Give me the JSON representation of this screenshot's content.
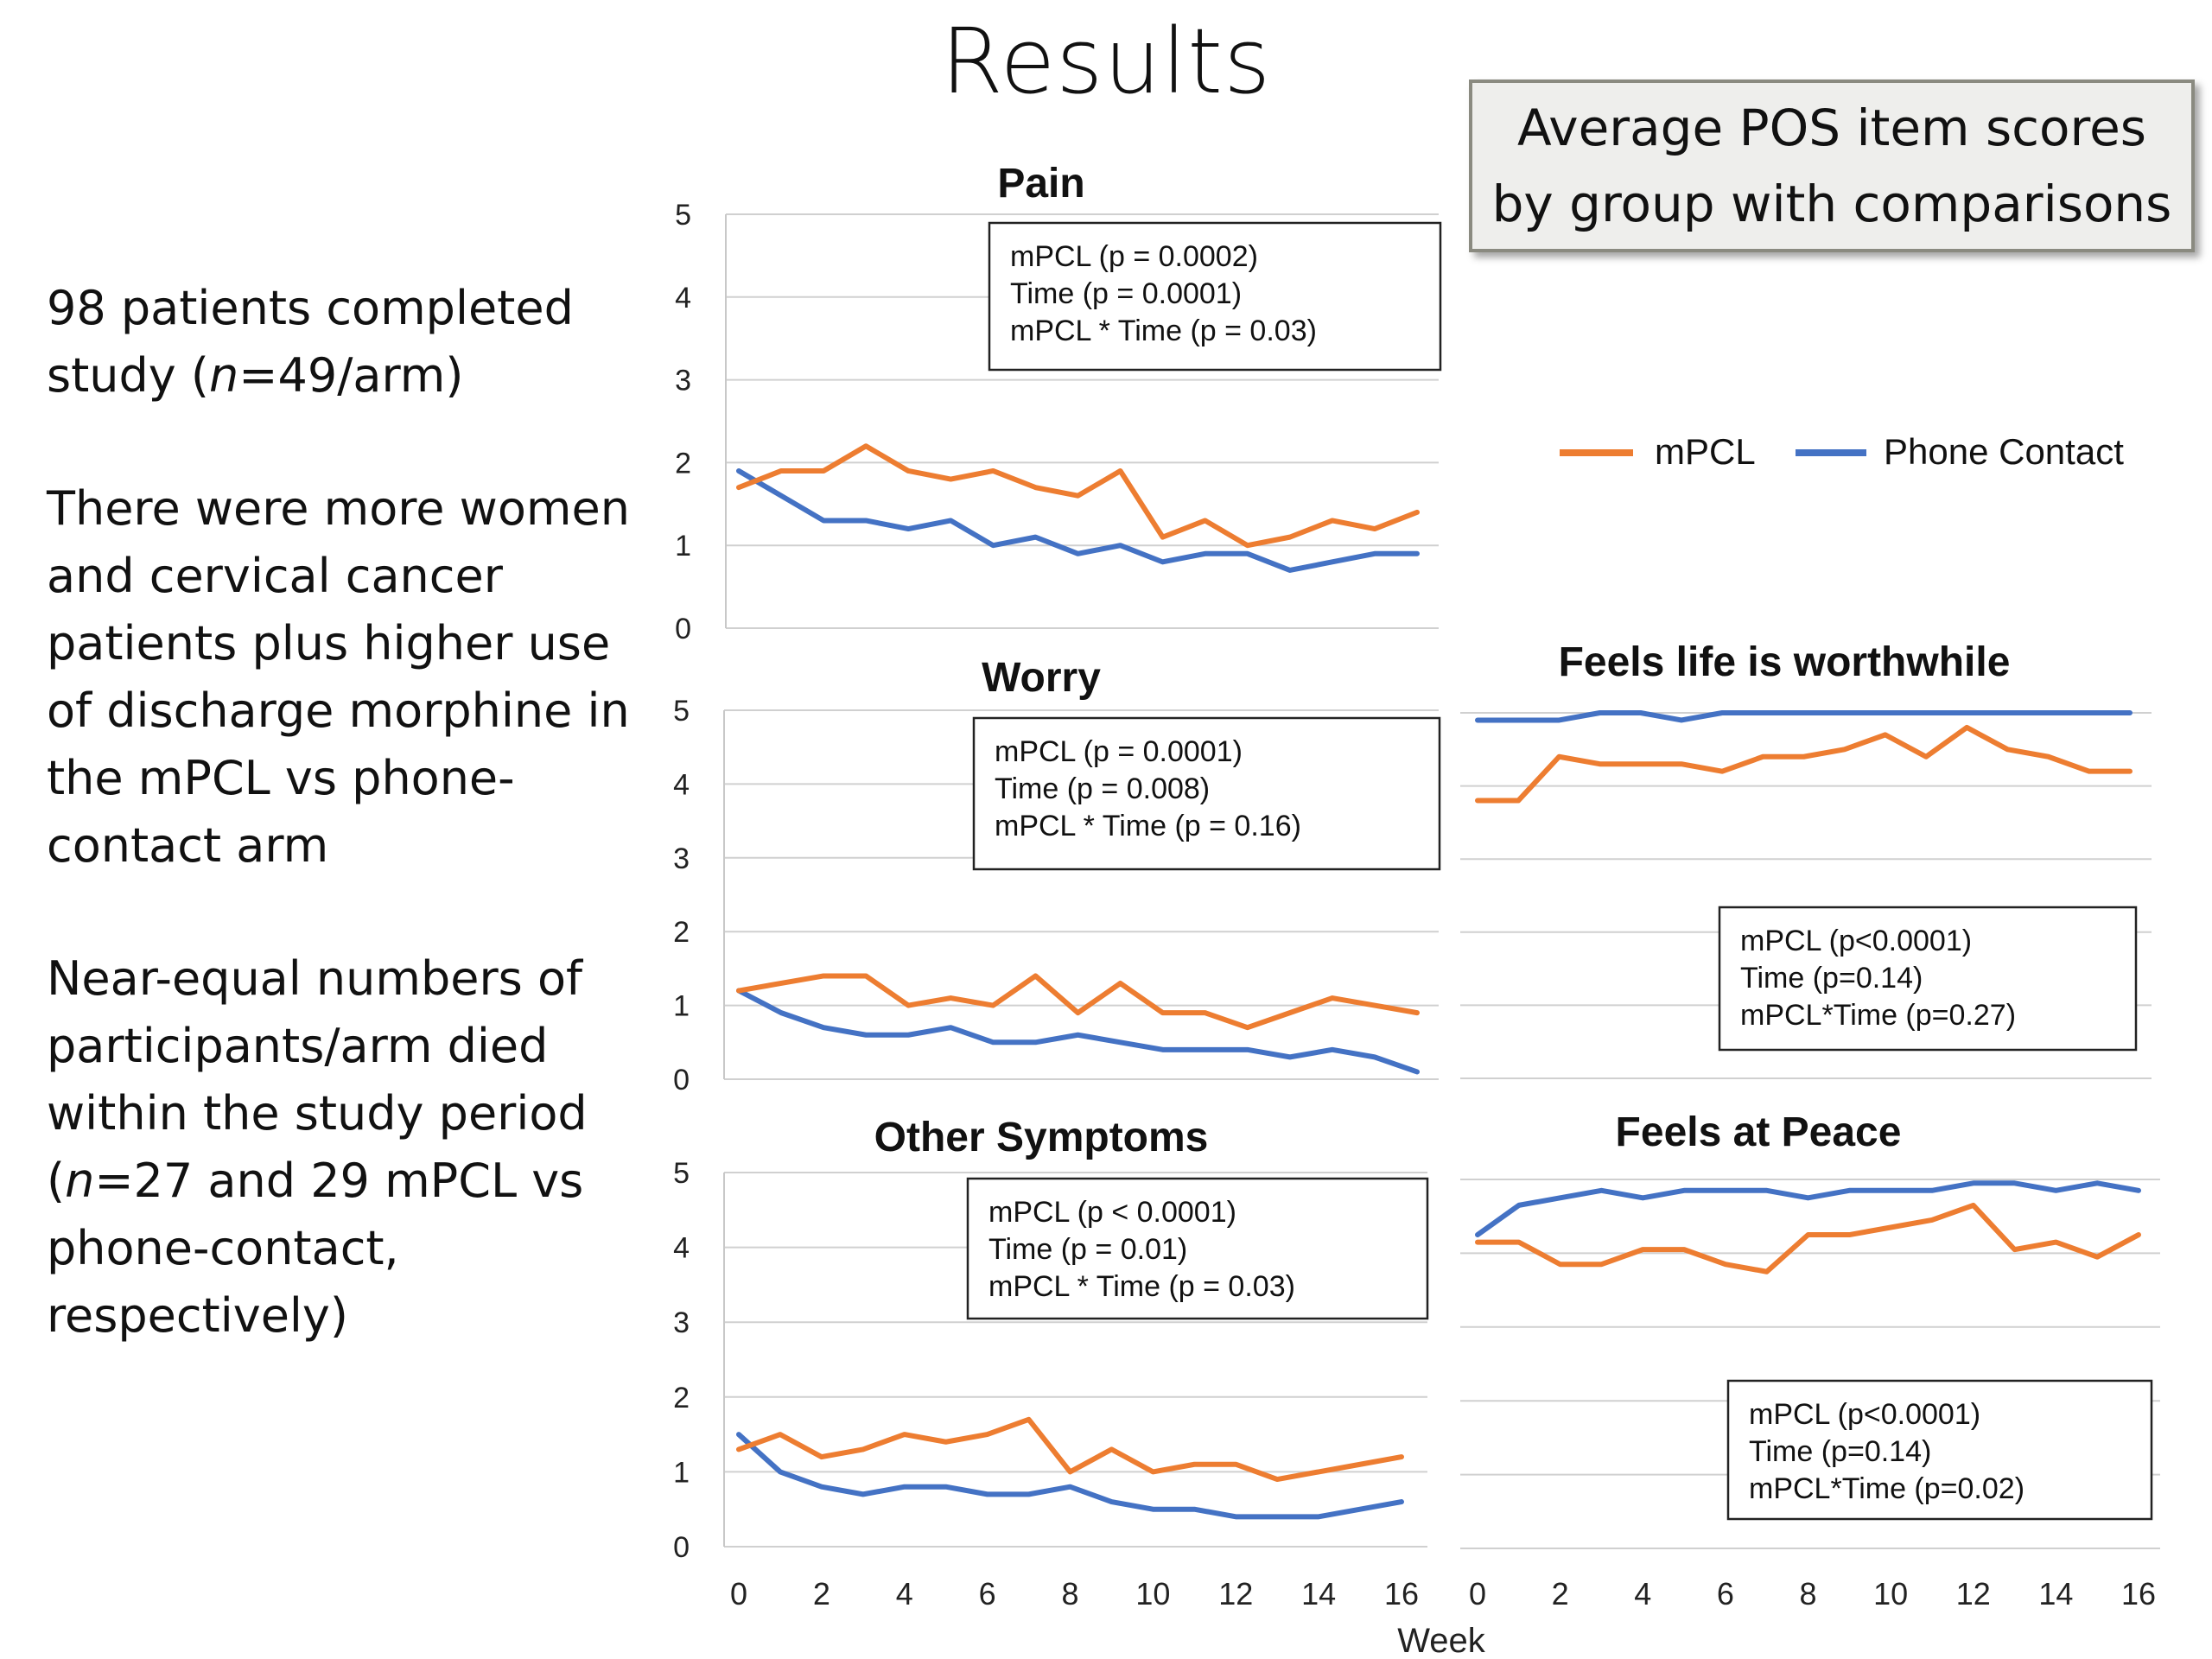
{
  "slide": {
    "title": "Results",
    "summary_box": [
      "Average POS item scores",
      "by group with comparisons"
    ],
    "paragraphs": [
      [
        {
          "t": "98 patients completed study ("
        },
        {
          "t": "n",
          "i": true
        },
        {
          "t": "=49/arm)"
        }
      ],
      [
        {
          "t": "There were more women and cervical cancer patients plus higher use of discharge morphine in the mPCL vs phone-contact arm"
        }
      ],
      [
        {
          "t": "Near-equal numbers of participants/arm died within the study period ("
        },
        {
          "t": "n",
          "i": true
        },
        {
          "t": "=27 and 29 mPCL vs phone-contact, respectively)"
        }
      ]
    ]
  },
  "colors": {
    "mPCL": "#ed7d31",
    "Phone Contact": "#4472c4",
    "grid": "#d0d0d0",
    "text": "#111111"
  },
  "legend": [
    "mPCL",
    "Phone Contact"
  ],
  "x_axis_label": "Week",
  "chart_data": [
    {
      "type": "line",
      "title": "Pain",
      "x": [
        0,
        1,
        2,
        3,
        4,
        5,
        6,
        7,
        8,
        9,
        10,
        11,
        12,
        13,
        14,
        15,
        16
      ],
      "ylim": [
        0,
        5
      ],
      "yticks": [
        0,
        1,
        2,
        3,
        4,
        5
      ],
      "grid": true,
      "series": [
        {
          "name": "mPCL",
          "values": [
            1.7,
            1.9,
            1.9,
            2.2,
            1.9,
            1.8,
            1.9,
            1.7,
            1.6,
            1.9,
            1.1,
            1.3,
            1.0,
            1.1,
            1.3,
            1.2,
            1.4
          ]
        },
        {
          "name": "Phone Contact",
          "values": [
            1.9,
            1.6,
            1.3,
            1.3,
            1.2,
            1.3,
            1.0,
            1.1,
            0.9,
            1.0,
            0.8,
            0.9,
            0.9,
            0.7,
            0.8,
            0.9,
            0.9
          ]
        }
      ],
      "annotations": [
        "mPCL (p = 0.0002)",
        "Time (p = 0.0001)",
        "mPCL * Time (p = 0.03)"
      ]
    },
    {
      "type": "line",
      "title": "Worry",
      "x": [
        0,
        1,
        2,
        3,
        4,
        5,
        6,
        7,
        8,
        9,
        10,
        11,
        12,
        13,
        14,
        15,
        16
      ],
      "ylim": [
        0,
        5
      ],
      "yticks": [
        0,
        1,
        2,
        3,
        4,
        5
      ],
      "grid": true,
      "series": [
        {
          "name": "mPCL",
          "values": [
            1.2,
            1.3,
            1.4,
            1.4,
            1.0,
            1.1,
            1.0,
            1.4,
            0.9,
            1.3,
            0.9,
            0.9,
            0.7,
            0.9,
            1.1,
            1.0,
            0.9
          ]
        },
        {
          "name": "Phone Contact",
          "values": [
            1.2,
            0.9,
            0.7,
            0.6,
            0.6,
            0.7,
            0.5,
            0.5,
            0.6,
            0.5,
            0.4,
            0.4,
            0.4,
            0.3,
            0.4,
            0.3,
            0.1
          ]
        }
      ],
      "annotations": [
        "mPCL (p = 0.0001)",
        "Time (p = 0.008)",
        "mPCL * Time (p = 0.16)"
      ]
    },
    {
      "type": "line",
      "title": "Other Symptoms",
      "x": [
        0,
        1,
        2,
        3,
        4,
        5,
        6,
        7,
        8,
        9,
        10,
        11,
        12,
        13,
        14,
        15,
        16
      ],
      "ylim": [
        0,
        5
      ],
      "yticks": [
        0,
        1,
        2,
        3,
        4,
        5
      ],
      "grid": true,
      "xticks": [
        0,
        2,
        4,
        6,
        8,
        10,
        12,
        14,
        16
      ],
      "series": [
        {
          "name": "mPCL",
          "values": [
            1.3,
            1.5,
            1.2,
            1.3,
            1.5,
            1.4,
            1.5,
            1.7,
            1.0,
            1.3,
            1.0,
            1.1,
            1.1,
            0.9,
            1.0,
            1.1,
            1.2
          ]
        },
        {
          "name": "Phone Contact",
          "values": [
            1.5,
            1.0,
            0.8,
            0.7,
            0.8,
            0.8,
            0.7,
            0.7,
            0.8,
            0.6,
            0.5,
            0.5,
            0.4,
            0.4,
            0.4,
            0.5,
            0.6
          ]
        }
      ],
      "annotations": [
        "mPCL (p < 0.0001)",
        "Time (p = 0.01)",
        "mPCL * Time (p = 0.03)"
      ]
    },
    {
      "type": "line",
      "title": "Feels life is worthwhile",
      "x": [
        0,
        1,
        2,
        3,
        4,
        5,
        6,
        7,
        8,
        9,
        10,
        11,
        12,
        13,
        14,
        15,
        16
      ],
      "ylim": [
        0,
        5
      ],
      "grid": true,
      "series": [
        {
          "name": "mPCL",
          "values": [
            3.8,
            3.8,
            4.4,
            4.3,
            4.3,
            4.3,
            4.2,
            4.4,
            4.4,
            4.5,
            4.7,
            4.4,
            4.8,
            4.5,
            4.4,
            4.2,
            4.2
          ]
        },
        {
          "name": "Phone Contact",
          "values": [
            4.9,
            4.9,
            4.9,
            5.0,
            5.0,
            4.9,
            5.0,
            5.0,
            5.0,
            5.0,
            5.0,
            5.0,
            5.0,
            5.0,
            5.0,
            5.0,
            5.0
          ]
        }
      ],
      "annotations": [
        "mPCL (p<0.0001)",
        "Time (p=0.14)",
        "mPCL*Time (p=0.27)"
      ]
    },
    {
      "type": "line",
      "title": "Feels at Peace",
      "x": [
        0,
        1,
        2,
        3,
        4,
        5,
        6,
        7,
        8,
        9,
        10,
        11,
        12,
        13,
        14,
        15,
        16
      ],
      "ylim": [
        0,
        5
      ],
      "grid": true,
      "xticks": [
        0,
        2,
        4,
        6,
        8,
        10,
        12,
        14,
        16
      ],
      "series": [
        {
          "name": "mPCL",
          "values": [
            4.15,
            4.15,
            3.85,
            3.85,
            4.05,
            4.05,
            3.85,
            3.75,
            4.25,
            4.25,
            4.35,
            4.45,
            4.65,
            4.05,
            4.15,
            3.95,
            4.25
          ]
        },
        {
          "name": "Phone Contact",
          "values": [
            4.25,
            4.65,
            4.75,
            4.85,
            4.75,
            4.85,
            4.85,
            4.85,
            4.75,
            4.85,
            4.85,
            4.85,
            4.95,
            4.95,
            4.85,
            4.95,
            4.85
          ]
        }
      ],
      "annotations": [
        "mPCL (p<0.0001)",
        "Time (p=0.14)",
        "mPCL*Time (p=0.02)"
      ]
    }
  ]
}
